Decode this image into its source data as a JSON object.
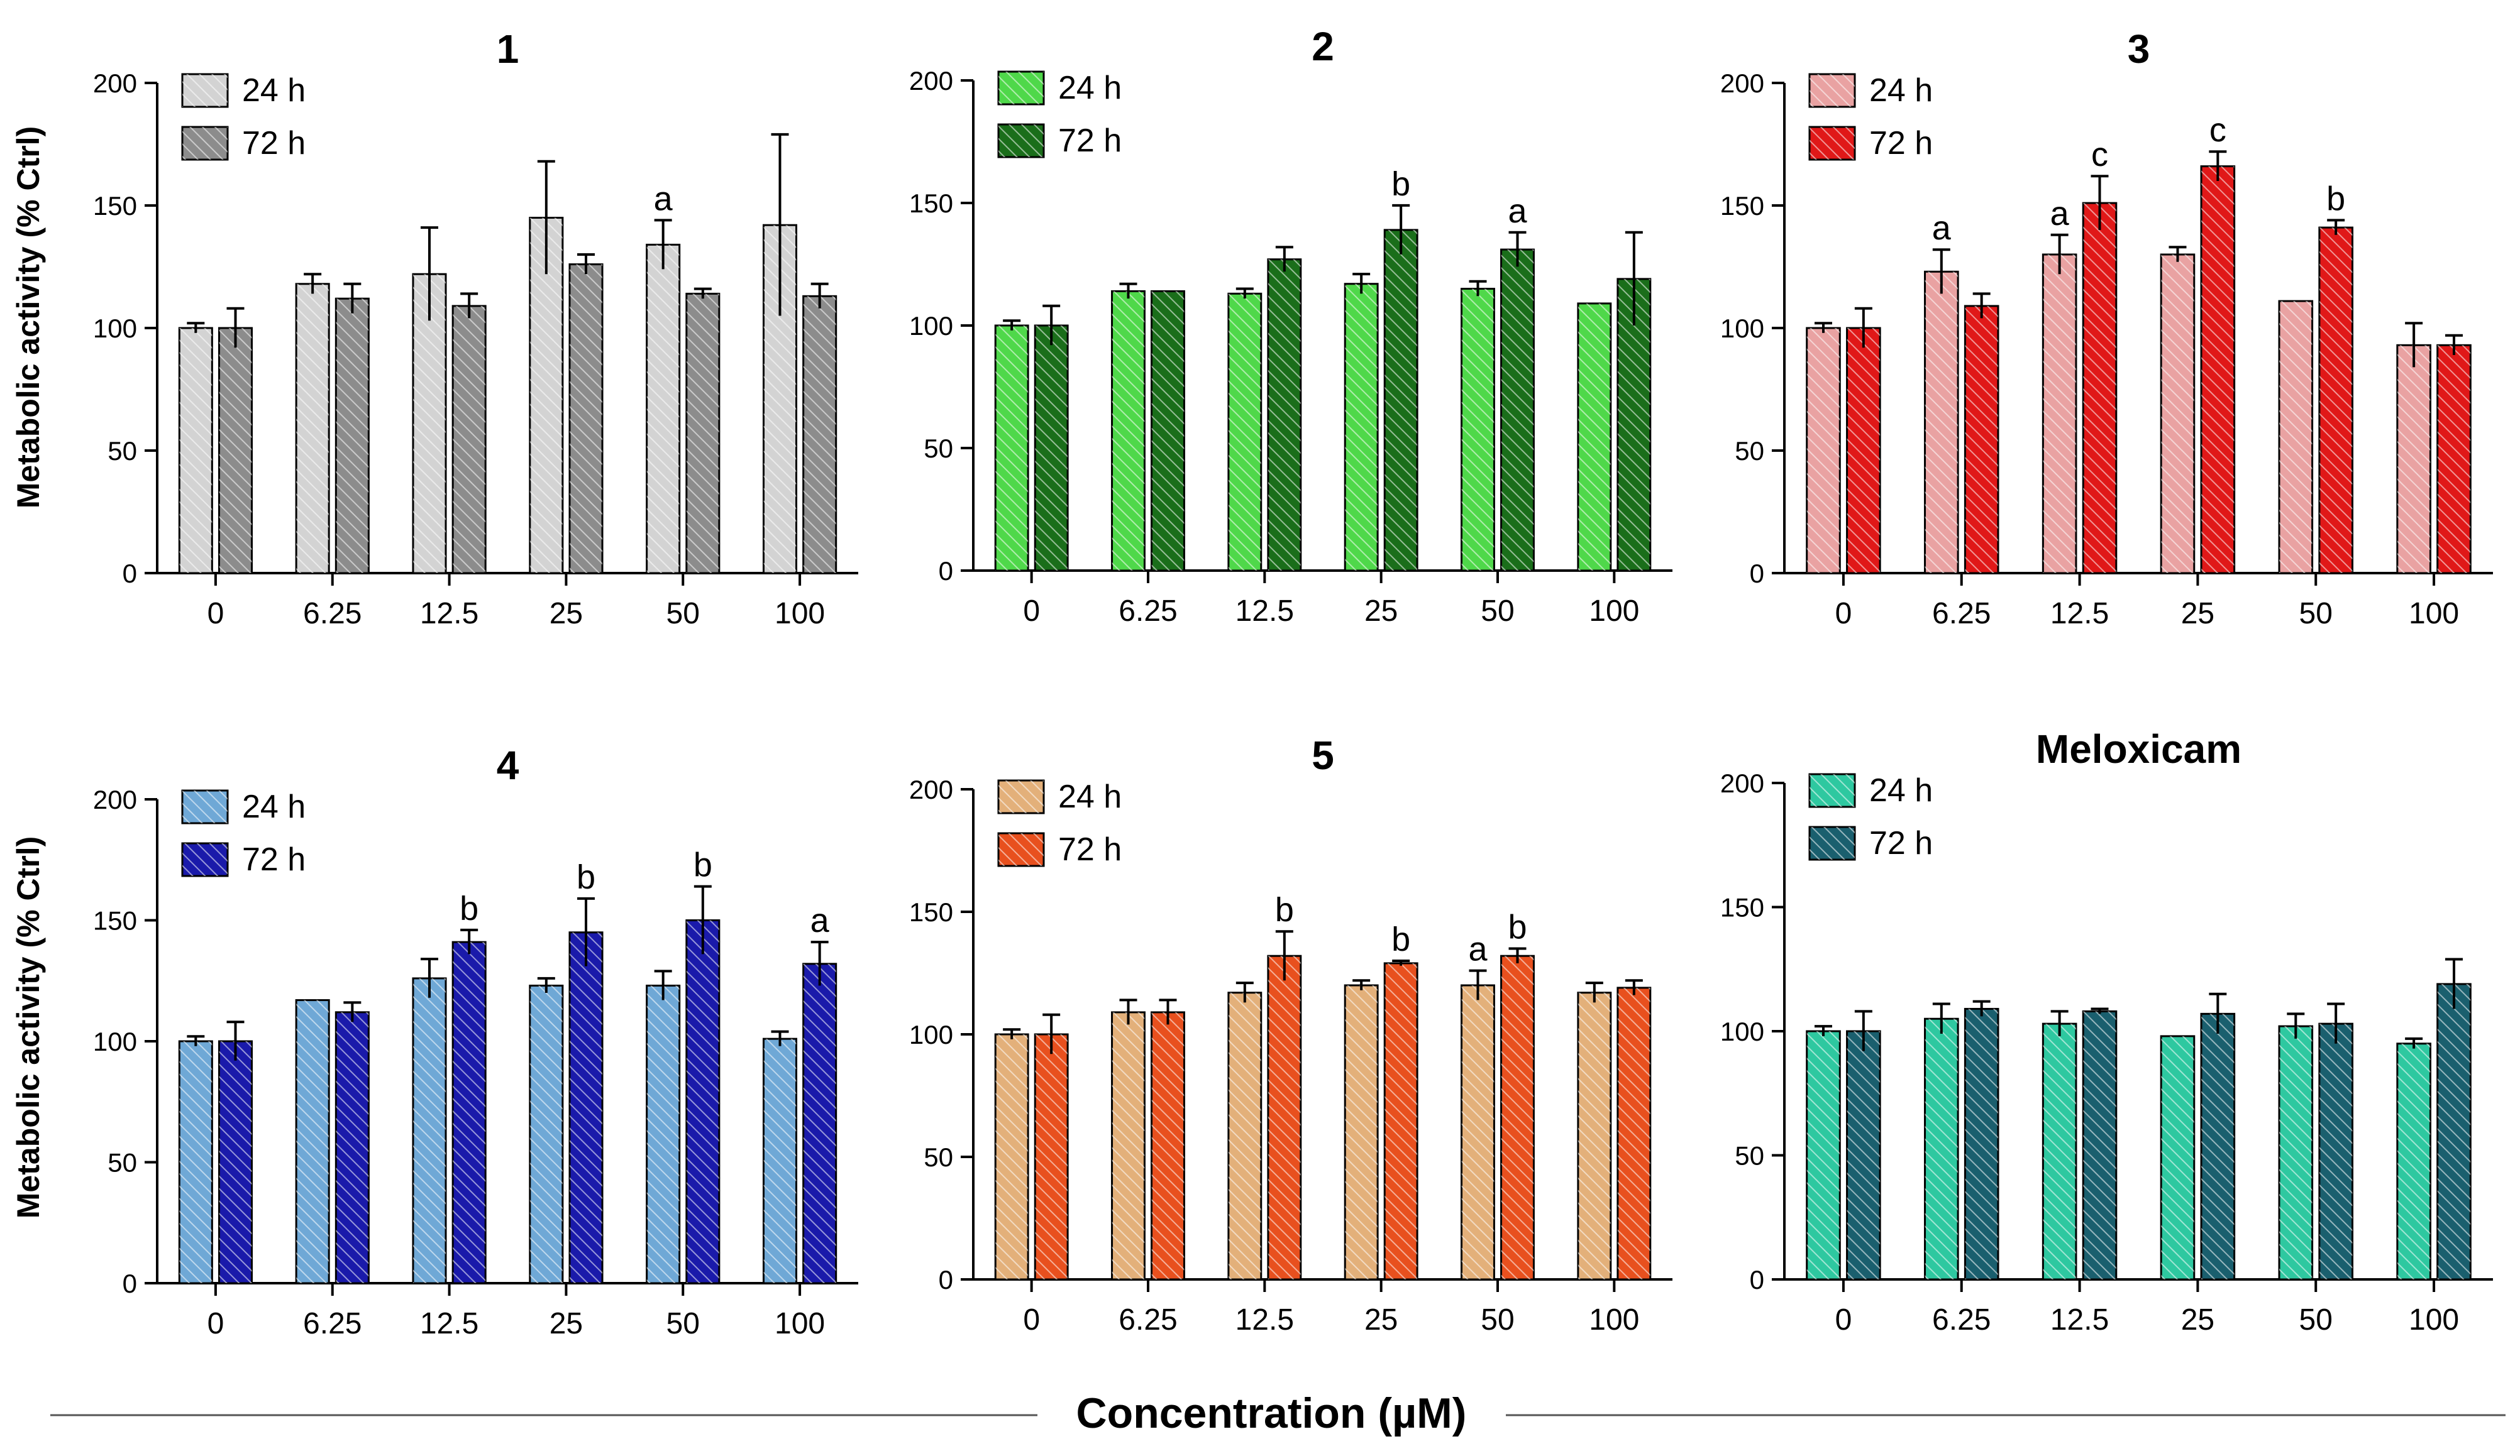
{
  "figure": {
    "xlabel": "Concentration (µM)",
    "ylabel": "Metabolic activity (% Ctrl)"
  },
  "chart_data": [
    {
      "type": "bar",
      "title": "1",
      "categories": [
        "0",
        "6.25",
        "12.5",
        "25",
        "50",
        "100"
      ],
      "ylim": [
        0,
        200
      ],
      "yticks": [
        "0",
        "50",
        "100",
        "150",
        "200"
      ],
      "series": [
        {
          "name": "24 h",
          "color": "#d3d3d3",
          "values": [
            100,
            118,
            122,
            145,
            134,
            142
          ],
          "errors": [
            2,
            4,
            19,
            23,
            10,
            37
          ],
          "letters": [
            "",
            "",
            "",
            "",
            "a",
            ""
          ]
        },
        {
          "name": "72 h",
          "color": "#8c8c8c",
          "values": [
            100,
            112,
            109,
            126,
            114,
            113
          ],
          "errors": [
            8,
            6,
            5,
            4,
            2,
            5
          ],
          "letters": [
            "",
            "",
            "",
            "",
            "",
            ""
          ]
        }
      ]
    },
    {
      "type": "bar",
      "title": "2",
      "categories": [
        "0",
        "6.25",
        "12.5",
        "25",
        "50",
        "100"
      ],
      "ylim": [
        0,
        200
      ],
      "yticks": [
        "0",
        "50",
        "100",
        "150",
        "200"
      ],
      "series": [
        {
          "name": "24 h",
          "color": "#4fd84a",
          "values": [
            100,
            114,
            113,
            117,
            115,
            109
          ],
          "errors": [
            2,
            3,
            2,
            4,
            3,
            0
          ],
          "letters": [
            "",
            "",
            "",
            "",
            "",
            ""
          ]
        },
        {
          "name": "72 h",
          "color": "#1a6e1a",
          "values": [
            100,
            114,
            127,
            139,
            131,
            119
          ],
          "errors": [
            8,
            0,
            5,
            10,
            7,
            19
          ],
          "letters": [
            "",
            "",
            "",
            "b",
            "a",
            ""
          ]
        }
      ]
    },
    {
      "type": "bar",
      "title": "3",
      "categories": [
        "0",
        "6.25",
        "12.5",
        "25",
        "50",
        "100"
      ],
      "ylim": [
        0,
        200
      ],
      "yticks": [
        "0",
        "50",
        "100",
        "150",
        "200"
      ],
      "series": [
        {
          "name": "24 h",
          "color": "#e9a2a2",
          "values": [
            100,
            123,
            130,
            130,
            111,
            93
          ],
          "errors": [
            2,
            9,
            8,
            3,
            0,
            9
          ],
          "letters": [
            "",
            "a",
            "a",
            "",
            "",
            ""
          ]
        },
        {
          "name": "72 h",
          "color": "#e01818",
          "values": [
            100,
            109,
            151,
            166,
            141,
            93
          ],
          "errors": [
            8,
            5,
            11,
            6,
            3,
            4
          ],
          "letters": [
            "",
            "",
            "c",
            "c",
            "b",
            ""
          ]
        }
      ]
    },
    {
      "type": "bar",
      "title": "4",
      "categories": [
        "0",
        "6.25",
        "12.5",
        "25",
        "50",
        "100"
      ],
      "ylim": [
        0,
        200
      ],
      "yticks": [
        "0",
        "50",
        "100",
        "150",
        "200"
      ],
      "series": [
        {
          "name": "24 h",
          "color": "#6fa8d6",
          "values": [
            100,
            117,
            126,
            123,
            123,
            101
          ],
          "errors": [
            2,
            0,
            8,
            3,
            6,
            3
          ],
          "letters": [
            "",
            "",
            "",
            "",
            "",
            ""
          ]
        },
        {
          "name": "72 h",
          "color": "#1a1aaa",
          "values": [
            100,
            112,
            141,
            145,
            150,
            132
          ],
          "errors": [
            8,
            4,
            5,
            14,
            14,
            9
          ],
          "letters": [
            "",
            "",
            "b",
            "b",
            "b",
            "a"
          ]
        }
      ]
    },
    {
      "type": "bar",
      "title": "5",
      "categories": [
        "0",
        "6.25",
        "12.5",
        "25",
        "50",
        "100"
      ],
      "ylim": [
        0,
        200
      ],
      "yticks": [
        "0",
        "50",
        "100",
        "150",
        "200"
      ],
      "series": [
        {
          "name": "24 h",
          "color": "#e3b07a",
          "values": [
            100,
            109,
            117,
            120,
            120,
            117
          ],
          "errors": [
            2,
            5,
            4,
            2,
            6,
            4
          ],
          "letters": [
            "",
            "",
            "",
            "",
            "a",
            ""
          ]
        },
        {
          "name": "72 h",
          "color": "#e8501e",
          "values": [
            100,
            109,
            132,
            129,
            132,
            119
          ],
          "errors": [
            8,
            5,
            10,
            1,
            3,
            3
          ],
          "letters": [
            "",
            "",
            "b",
            "b",
            "b",
            ""
          ]
        }
      ]
    },
    {
      "type": "bar",
      "title": "Meloxicam",
      "categories": [
        "0",
        "6.25",
        "12.5",
        "25",
        "50",
        "100"
      ],
      "ylim": [
        0,
        200
      ],
      "yticks": [
        "0",
        "50",
        "100",
        "150",
        "200"
      ],
      "series": [
        {
          "name": "24 h",
          "color": "#2ec8a0",
          "values": [
            100,
            105,
            103,
            98,
            102,
            95
          ],
          "errors": [
            2,
            6,
            5,
            0,
            5,
            2
          ],
          "letters": [
            "",
            "",
            "",
            "",
            "",
            ""
          ]
        },
        {
          "name": "72 h",
          "color": "#1a5f6e",
          "values": [
            100,
            109,
            108,
            107,
            103,
            119
          ],
          "errors": [
            8,
            3,
            1,
            8,
            8,
            10
          ],
          "letters": [
            "",
            "",
            "",
            "",
            "",
            ""
          ]
        }
      ]
    }
  ]
}
